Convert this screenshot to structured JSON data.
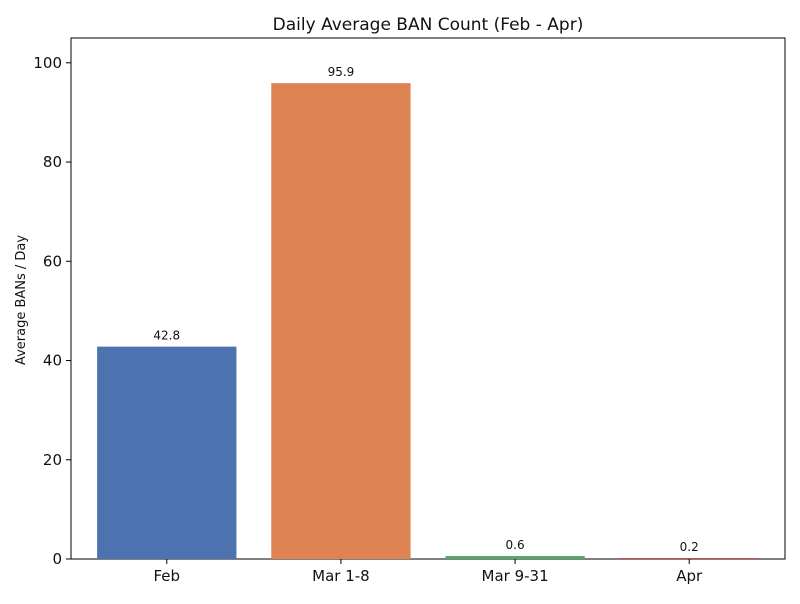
{
  "chart_data": {
    "type": "bar",
    "title": "Daily Average BAN Count (Feb - Apr)",
    "xlabel": "",
    "ylabel": "Average BANs / Day",
    "categories": [
      "Feb",
      "Mar 1-8",
      "Mar 9-31",
      "Apr"
    ],
    "values": [
      42.8,
      95.9,
      0.6,
      0.2
    ],
    "value_labels": [
      "42.8",
      "95.9",
      "0.6",
      "0.2"
    ],
    "colors": [
      "#4c72b0",
      "#dd8452",
      "#55a868",
      "#c44e52"
    ],
    "ylim": [
      0,
      100
    ],
    "yticks": [
      0,
      20,
      40,
      60,
      80,
      100
    ],
    "grid": false,
    "legend": "none"
  }
}
